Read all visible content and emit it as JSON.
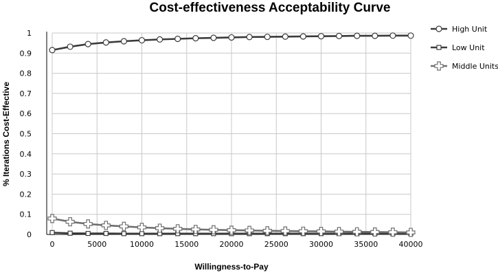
{
  "chart_data": {
    "type": "line",
    "title": "Cost-effectiveness Acceptability Curve",
    "xlabel": "Willingness-to-Pay",
    "ylabel": "% Iterations Cost-Effective",
    "xlim": [
      0,
      40000
    ],
    "ylim": [
      0,
      1
    ],
    "grid": true,
    "legend_position": "right",
    "x_ticks": [
      0,
      5000,
      10000,
      15000,
      20000,
      25000,
      30000,
      35000,
      40000
    ],
    "x_tick_labels": [
      "0",
      "5000",
      "10000",
      "15000",
      "20000",
      "25000",
      "30000",
      "35000",
      "40000"
    ],
    "y_ticks": [
      0,
      0.1,
      0.2,
      0.3,
      0.4,
      0.5,
      0.6,
      0.7,
      0.8,
      0.9,
      1
    ],
    "y_tick_labels": [
      "0",
      "0.1",
      "0.2",
      "0.3",
      "0.4",
      "0.5",
      "0.6",
      "0.7",
      "0.8",
      "0.9",
      "1"
    ],
    "x": [
      0,
      2000,
      4000,
      6000,
      8000,
      10000,
      12000,
      14000,
      16000,
      18000,
      20000,
      22000,
      24000,
      26000,
      28000,
      30000,
      32000,
      34000,
      36000,
      38000,
      40000
    ],
    "series": [
      {
        "name": "High Unit",
        "marker": "circle",
        "color": "#3a3a3a",
        "values": [
          0.915,
          0.932,
          0.945,
          0.953,
          0.959,
          0.964,
          0.968,
          0.971,
          0.974,
          0.976,
          0.978,
          0.98,
          0.981,
          0.982,
          0.983,
          0.984,
          0.985,
          0.986,
          0.986,
          0.987,
          0.987
        ]
      },
      {
        "name": "Low Unit",
        "marker": "square",
        "color": "#3a3a3a",
        "values": [
          0.009,
          0.006,
          0.005,
          0.005,
          0.004,
          0.004,
          0.004,
          0.004,
          0.004,
          0.004,
          0.004,
          0.004,
          0.004,
          0.004,
          0.004,
          0.004,
          0.004,
          0.004,
          0.004,
          0.004,
          0.004
        ]
      },
      {
        "name": "Middle Units",
        "marker": "cross",
        "color": "#6e6e6e",
        "values": [
          0.079,
          0.063,
          0.052,
          0.045,
          0.04,
          0.035,
          0.031,
          0.028,
          0.025,
          0.023,
          0.021,
          0.02,
          0.018,
          0.017,
          0.016,
          0.015,
          0.014,
          0.013,
          0.012,
          0.011,
          0.01
        ]
      }
    ]
  }
}
